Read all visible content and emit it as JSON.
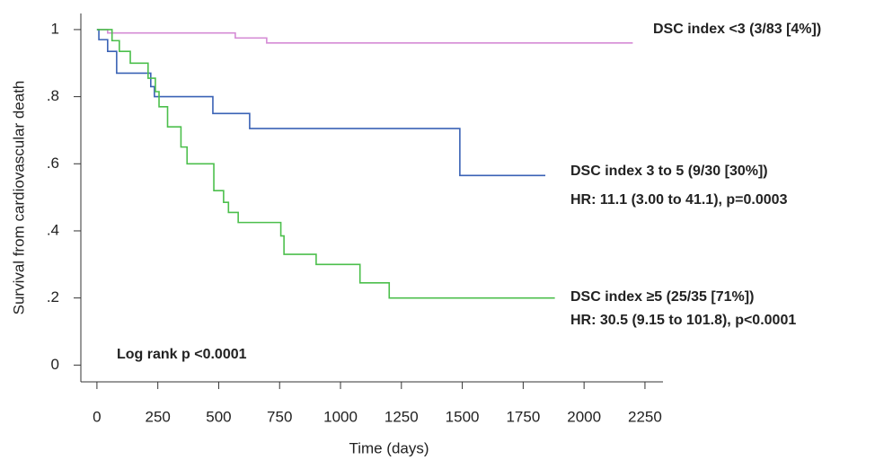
{
  "chart_data": {
    "type": "line",
    "step": true,
    "xlabel": "Time (days)",
    "ylabel": "Survival from cardiovascular death",
    "xlim": [
      -66,
      2324
    ],
    "ylim": [
      -0.05,
      1.048
    ],
    "xticks": [
      0,
      250,
      500,
      750,
      1000,
      1250,
      1500,
      1750,
      2000,
      2250
    ],
    "yticks": [
      0,
      {
        "value": 0.2,
        "label": ".2"
      },
      {
        "value": 0.4,
        "label": ".4"
      },
      {
        "value": 0.6,
        "label": ".6"
      },
      {
        "value": 0.8,
        "label": ".8"
      },
      1
    ],
    "series": [
      {
        "name": "DSC index <3 (3/83 [4%])",
        "color": "#d58bd5",
        "x": [
          0,
          44,
          44,
          568,
          568,
          697,
          697,
          2200
        ],
        "values": [
          1,
          1,
          0.99,
          0.99,
          0.975,
          0.975,
          0.96,
          0.96
        ]
      },
      {
        "name": "DSC index 3 to 5 (9/30 [30%])",
        "color": "#3a62b5",
        "x": [
          0,
          8,
          8,
          44,
          44,
          81,
          81,
          221,
          221,
          236,
          236,
          476,
          476,
          627,
          627,
          1490,
          1490,
          1841
        ],
        "values": [
          1,
          1,
          0.97,
          0.97,
          0.935,
          0.935,
          0.87,
          0.87,
          0.83,
          0.83,
          0.8,
          0.8,
          0.75,
          0.75,
          0.705,
          0.705,
          0.565,
          0.565
        ]
      },
      {
        "name": "DSC index ≥5 (25/35 [71%])",
        "color": "#4cbf4c",
        "x": [
          0,
          62,
          62,
          92,
          92,
          137,
          137,
          210,
          210,
          240,
          240,
          255,
          255,
          290,
          290,
          345,
          345,
          370,
          370,
          480,
          480,
          520,
          520,
          540,
          540,
          580,
          580,
          755,
          755,
          768,
          768,
          900,
          900,
          1080,
          1080,
          1200,
          1200,
          1880
        ],
        "values": [
          1,
          1,
          0.967,
          0.967,
          0.935,
          0.935,
          0.9,
          0.9,
          0.855,
          0.855,
          0.815,
          0.815,
          0.77,
          0.77,
          0.71,
          0.71,
          0.65,
          0.65,
          0.6,
          0.6,
          0.52,
          0.52,
          0.485,
          0.485,
          0.455,
          0.455,
          0.425,
          0.425,
          0.385,
          0.385,
          0.33,
          0.33,
          0.3,
          0.3,
          0.245,
          0.245,
          0.2,
          0.2
        ]
      }
    ],
    "annotations": [
      "HR: 11.1 (3.00 to 41.1), p=0.0003",
      "HR: 30.5 (9.15 to 101.8), p<0.0001",
      "Log rank p <0.0001"
    ]
  }
}
